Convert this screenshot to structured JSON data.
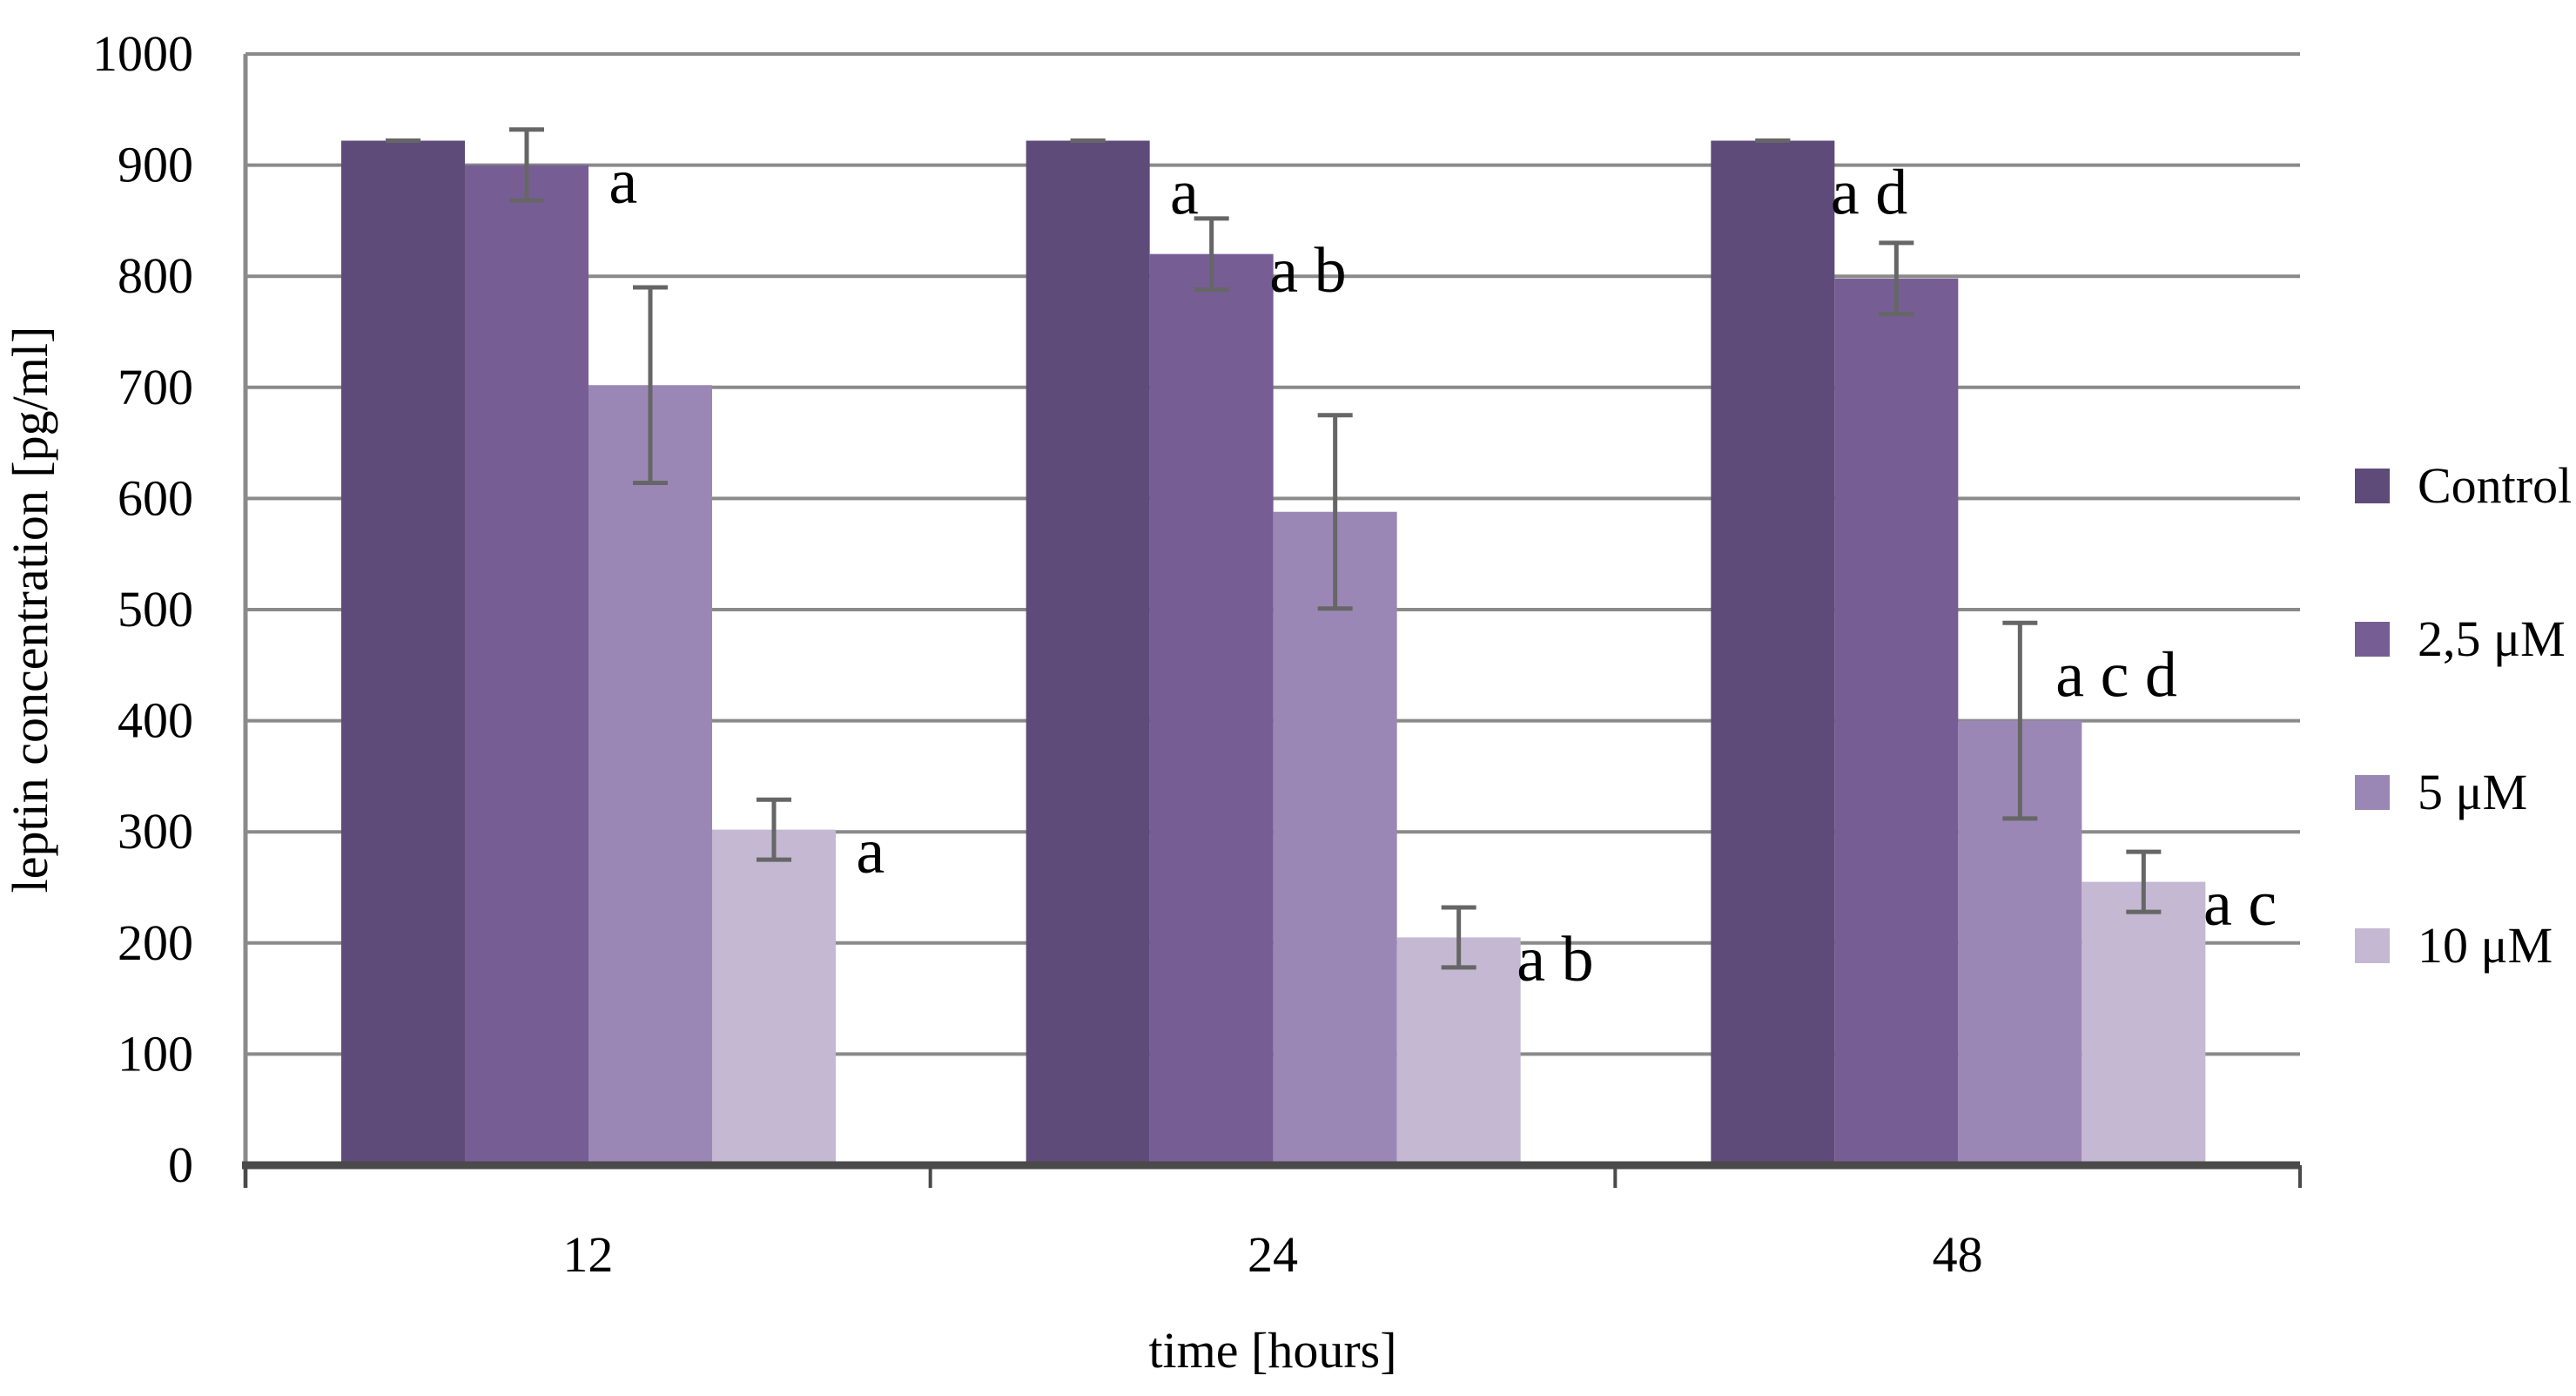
{
  "chart_data": {
    "type": "bar",
    "xlabel": "time [hours]",
    "ylabel": "leptin concentration [pg/ml]",
    "ylim": [
      0,
      1000
    ],
    "yticks": [
      "0",
      "100",
      "200",
      "300",
      "400",
      "500",
      "600",
      "700",
      "800",
      "900",
      "1000"
    ],
    "categories": [
      "12",
      "24",
      "48"
    ],
    "grid": true,
    "legend_position": "right",
    "series": [
      {
        "name": "Control",
        "color": "#5e4b7a",
        "values": [
          922,
          922,
          922
        ],
        "errors": [
          0,
          0,
          0
        ]
      },
      {
        "name": "2,5 μM",
        "color": "#765e95",
        "values": [
          900,
          820,
          798
        ],
        "errors": [
          32,
          32,
          32
        ]
      },
      {
        "name": "5 μM",
        "color": "#9b87b6",
        "values": [
          702,
          588,
          400
        ],
        "errors": [
          88,
          87,
          88
        ]
      },
      {
        "name": "10 μM",
        "color": "#c4b8d3",
        "values": [
          302,
          205,
          255
        ],
        "errors": [
          27,
          27,
          27
        ]
      }
    ],
    "annotations": [
      {
        "category": "12",
        "series": "2,5 μM",
        "text": "a"
      },
      {
        "category": "12",
        "series": "10 μM",
        "text": "a"
      },
      {
        "category": "24",
        "series": "Control",
        "text": "a"
      },
      {
        "category": "24",
        "series": "2,5 μM",
        "text": "a b"
      },
      {
        "category": "24",
        "series": "10 μM",
        "text": "a b"
      },
      {
        "category": "48",
        "series": "Control",
        "text": "a d"
      },
      {
        "category": "48",
        "series": "5 μM",
        "text": "a c d"
      },
      {
        "category": "48",
        "series": "10 μM",
        "text": "a c"
      }
    ]
  }
}
